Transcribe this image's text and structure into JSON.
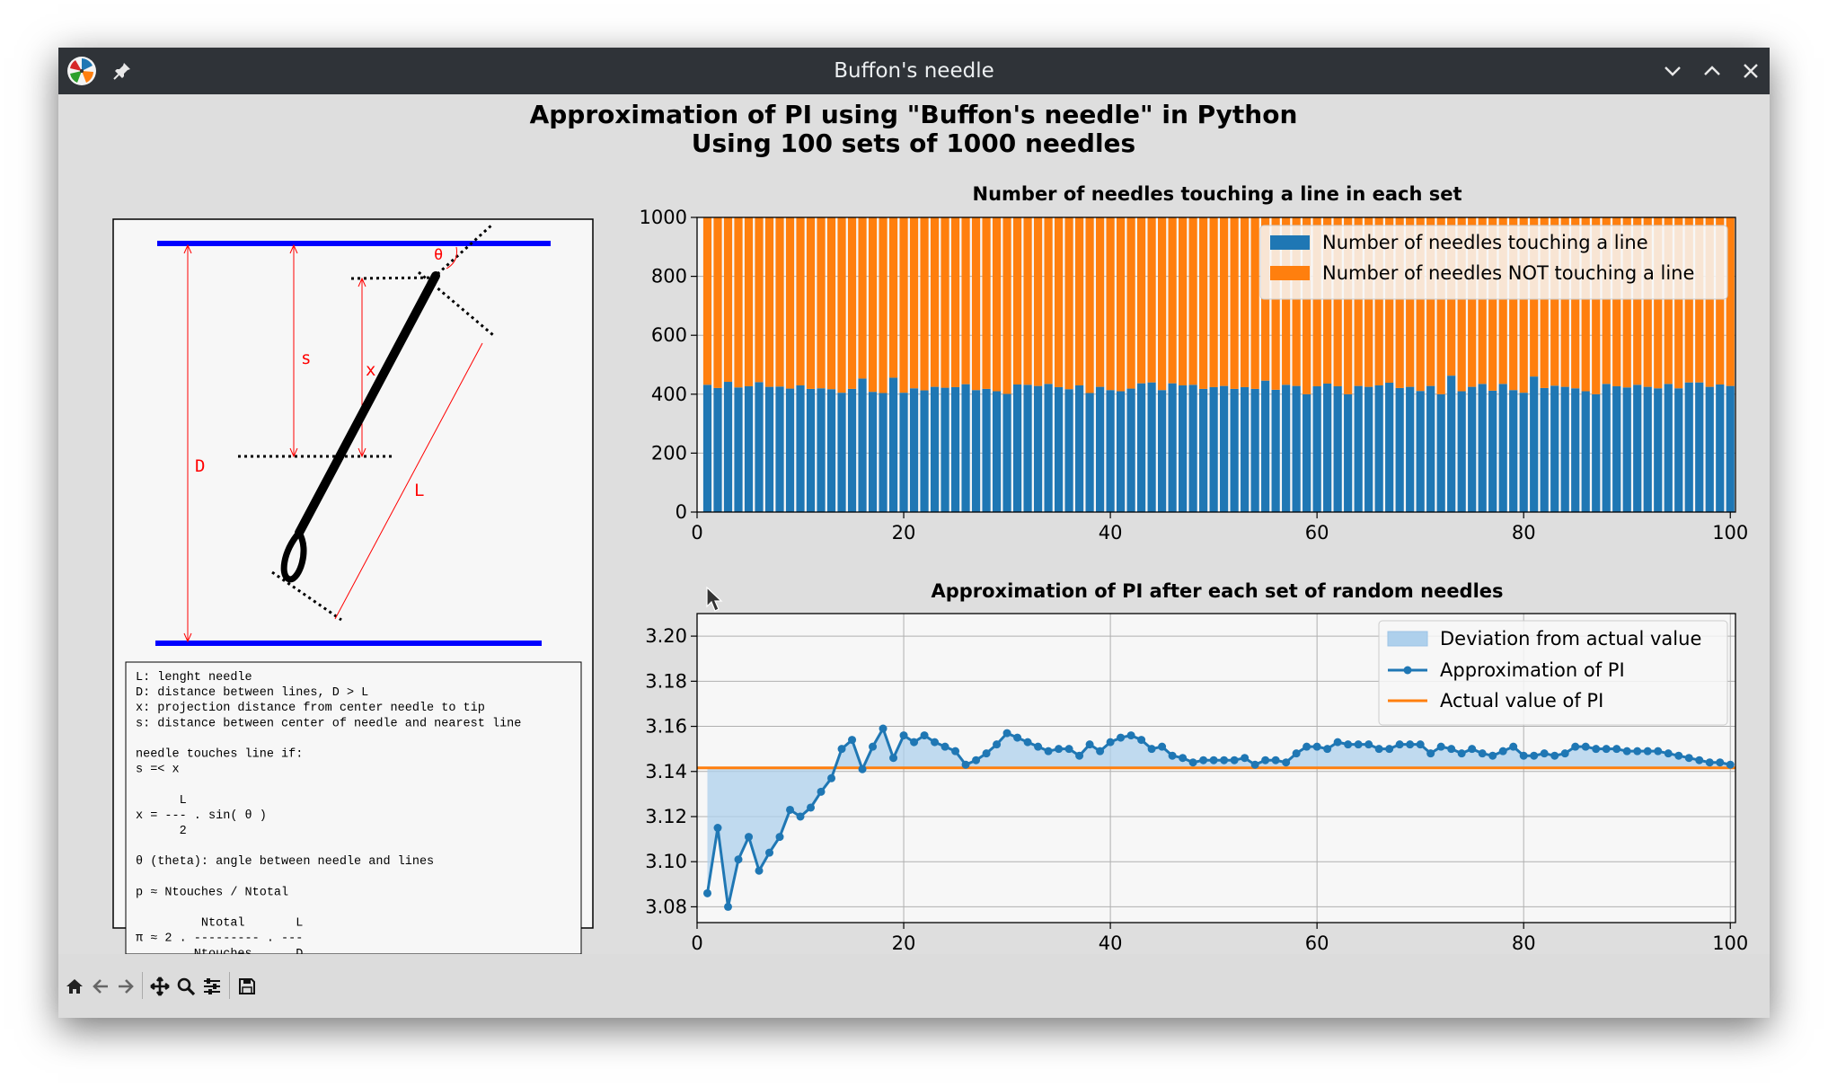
{
  "window": {
    "title": "Buffon's needle",
    "icon": "pinwheel-app-icon",
    "controls": [
      "pin-icon",
      "minimize-icon",
      "maximize-icon",
      "close-icon"
    ]
  },
  "figure": {
    "suptitle_line1": "Approximation of PI using \"Buffon's needle\" in Python",
    "suptitle_line2": "Using 100 sets of 1000 needles"
  },
  "diagram": {
    "labels": {
      "s": "s",
      "x": "x",
      "D": "D",
      "L": "L",
      "theta": "θ"
    },
    "notes": [
      "L: lenght needle",
      "D: distance between lines, D > L",
      "x: projection distance from center needle to tip",
      "s: distance between center of needle and nearest line",
      "",
      "needle touches line if:",
      "s =< x",
      "",
      "      L",
      "x = --- . sin( θ )",
      "      2",
      "",
      "θ (theta): angle between needle and lines",
      "",
      "p ≈ Ntouches / Ntotal",
      "",
      "         Ntotal       L",
      "π ≈ 2 . --------- . ---",
      "        Ntouches      D"
    ]
  },
  "chart_data": [
    {
      "type": "bar",
      "stacked": true,
      "title": "Number of needles touching a line in each set",
      "xlim": [
        0,
        100.5
      ],
      "ylim": [
        0,
        1000
      ],
      "xticks": [
        "0",
        "20",
        "40",
        "60",
        "80",
        "100"
      ],
      "yticks": [
        "0",
        "200",
        "400",
        "600",
        "800",
        "1000"
      ],
      "grid": true,
      "legend_position": "top-right",
      "x": [
        1,
        2,
        3,
        4,
        5,
        6,
        7,
        8,
        9,
        10,
        11,
        12,
        13,
        14,
        15,
        16,
        17,
        18,
        19,
        20,
        21,
        22,
        23,
        24,
        25,
        26,
        27,
        28,
        29,
        30,
        31,
        32,
        33,
        34,
        35,
        36,
        37,
        38,
        39,
        40,
        41,
        42,
        43,
        44,
        45,
        46,
        47,
        48,
        49,
        50,
        51,
        52,
        53,
        54,
        55,
        56,
        57,
        58,
        59,
        60,
        61,
        62,
        63,
        64,
        65,
        66,
        67,
        68,
        69,
        70,
        71,
        72,
        73,
        74,
        75,
        76,
        77,
        78,
        79,
        80,
        81,
        82,
        83,
        84,
        85,
        86,
        87,
        88,
        89,
        90,
        91,
        92,
        93,
        94,
        95,
        96,
        97,
        98,
        99,
        100
      ],
      "series": [
        {
          "name": "Number of needles touching a line",
          "color": "#1f77b4",
          "values": [
            432,
            421,
            442,
            423,
            427,
            441,
            425,
            426,
            419,
            430,
            418,
            420,
            417,
            405,
            418,
            453,
            408,
            404,
            456,
            405,
            420,
            413,
            425,
            422,
            424,
            434,
            414,
            418,
            410,
            401,
            433,
            432,
            428,
            435,
            424,
            417,
            430,
            404,
            425,
            414,
            410,
            419,
            437,
            440,
            414,
            437,
            430,
            432,
            418,
            424,
            428,
            418,
            424,
            418,
            446,
            415,
            432,
            428,
            400,
            427,
            436,
            427,
            400,
            428,
            425,
            430,
            439,
            421,
            425,
            411,
            428,
            400,
            463,
            410,
            425,
            435,
            412,
            435,
            414,
            405,
            460,
            421,
            429,
            425,
            420,
            410,
            400,
            435,
            427,
            423,
            432,
            425,
            420,
            435,
            420,
            440,
            440,
            425,
            433,
            428
          ]
        },
        {
          "name": "Number of needles NOT touching a line",
          "color": "#ff7f0e",
          "values": [
            568,
            579,
            558,
            577,
            573,
            559,
            575,
            574,
            581,
            570,
            582,
            580,
            583,
            595,
            582,
            547,
            592,
            596,
            544,
            595,
            580,
            587,
            575,
            578,
            576,
            566,
            586,
            582,
            590,
            599,
            567,
            568,
            572,
            565,
            576,
            583,
            570,
            596,
            575,
            586,
            590,
            581,
            563,
            560,
            586,
            563,
            570,
            568,
            582,
            576,
            572,
            582,
            576,
            582,
            554,
            585,
            568,
            572,
            600,
            573,
            564,
            573,
            600,
            572,
            575,
            570,
            561,
            579,
            575,
            589,
            572,
            600,
            537,
            590,
            575,
            565,
            588,
            565,
            586,
            595,
            540,
            579,
            571,
            575,
            580,
            590,
            600,
            565,
            573,
            577,
            568,
            575,
            580,
            565,
            580,
            560,
            560,
            575,
            567,
            572
          ]
        }
      ]
    },
    {
      "type": "line",
      "title": "Approximation of PI after each set of random needles",
      "xlim": [
        0,
        100.5
      ],
      "ylim": [
        3.073,
        3.21
      ],
      "xticks": [
        "0",
        "20",
        "40",
        "60",
        "80",
        "100"
      ],
      "yticks": [
        "3.08",
        "3.10",
        "3.12",
        "3.14",
        "3.16",
        "3.18",
        "3.20"
      ],
      "grid": true,
      "legend_position": "top-right",
      "x": [
        1,
        2,
        3,
        4,
        5,
        6,
        7,
        8,
        9,
        10,
        11,
        12,
        13,
        14,
        15,
        16,
        17,
        18,
        19,
        20,
        21,
        22,
        23,
        24,
        25,
        26,
        27,
        28,
        29,
        30,
        31,
        32,
        33,
        34,
        35,
        36,
        37,
        38,
        39,
        40,
        41,
        42,
        43,
        44,
        45,
        46,
        47,
        48,
        49,
        50,
        51,
        52,
        53,
        54,
        55,
        56,
        57,
        58,
        59,
        60,
        61,
        62,
        63,
        64,
        65,
        66,
        67,
        68,
        69,
        70,
        71,
        72,
        73,
        74,
        75,
        76,
        77,
        78,
        79,
        80,
        81,
        82,
        83,
        84,
        85,
        86,
        87,
        88,
        89,
        90,
        91,
        92,
        93,
        94,
        95,
        96,
        97,
        98,
        99,
        100
      ],
      "series": [
        {
          "name": "Approximation of PI",
          "color": "#1f77b4",
          "values": [
            3.086,
            3.115,
            3.08,
            3.101,
            3.111,
            3.096,
            3.104,
            3.111,
            3.123,
            3.12,
            3.124,
            3.131,
            3.137,
            3.15,
            3.154,
            3.141,
            3.151,
            3.159,
            3.146,
            3.156,
            3.153,
            3.156,
            3.153,
            3.151,
            3.149,
            3.143,
            3.145,
            3.148,
            3.152,
            3.157,
            3.155,
            3.153,
            3.151,
            3.149,
            3.15,
            3.15,
            3.147,
            3.152,
            3.149,
            3.153,
            3.155,
            3.156,
            3.154,
            3.15,
            3.151,
            3.147,
            3.146,
            3.144,
            3.145,
            3.145,
            3.145,
            3.145,
            3.146,
            3.143,
            3.145,
            3.145,
            3.144,
            3.148,
            3.151,
            3.151,
            3.15,
            3.153,
            3.152,
            3.152,
            3.152,
            3.15,
            3.15,
            3.152,
            3.152,
            3.152,
            3.148,
            3.151,
            3.15,
            3.148,
            3.15,
            3.148,
            3.147,
            3.149,
            3.151,
            3.147,
            3.147,
            3.148,
            3.147,
            3.148,
            3.151,
            3.151,
            3.15,
            3.15,
            3.15,
            3.149,
            3.149,
            3.149,
            3.149,
            3.148,
            3.147,
            3.146,
            3.145,
            3.144,
            3.144,
            3.143
          ]
        },
        {
          "name": "Actual value of PI",
          "color": "#ff7f0e",
          "value": 3.14159
        },
        {
          "name": "Deviation from actual value",
          "color": "#aed0ec",
          "kind": "fill_between"
        }
      ]
    }
  ],
  "toolbar": {
    "items": [
      "home-icon",
      "back-icon",
      "forward-icon",
      "pan-icon",
      "zoom-icon",
      "configure-subplots-icon",
      "save-icon"
    ]
  }
}
